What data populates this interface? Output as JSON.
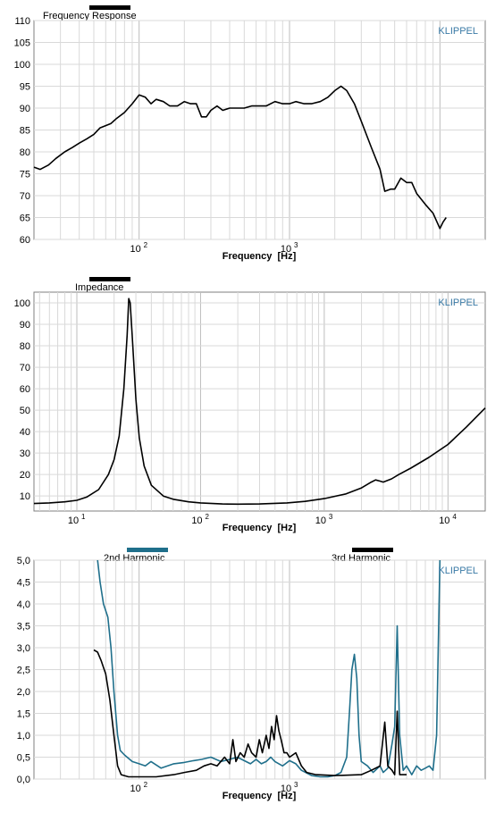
{
  "chart_data": [
    {
      "id": "fr",
      "type": "line",
      "title": "Frequency Response",
      "xlabel": "Frequency  [Hz]",
      "ylabel": "",
      "brand": "KLIPPEL",
      "x_scale": "log",
      "xlim": [
        20,
        20000
      ],
      "ylim": [
        60,
        110
      ],
      "y_ticks": [
        60,
        65,
        70,
        75,
        80,
        85,
        90,
        95,
        100,
        105,
        110
      ],
      "x_tick_labels": [
        {
          "value": 100,
          "base": "10",
          "exp": "2"
        },
        {
          "value": 1000,
          "base": "10",
          "exp": "3"
        }
      ],
      "grid": true,
      "series": [
        {
          "color": "#000000",
          "points": [
            [
              20,
              76.5
            ],
            [
              22,
              76
            ],
            [
              25,
              77
            ],
            [
              28,
              78.5
            ],
            [
              32,
              80
            ],
            [
              36,
              81
            ],
            [
              40,
              82
            ],
            [
              45,
              83
            ],
            [
              50,
              84
            ],
            [
              55,
              85.5
            ],
            [
              60,
              86
            ],
            [
              65,
              86.5
            ],
            [
              70,
              87.5
            ],
            [
              80,
              89
            ],
            [
              90,
              91
            ],
            [
              100,
              93
            ],
            [
              110,
              92.5
            ],
            [
              120,
              91
            ],
            [
              130,
              92
            ],
            [
              145,
              91.5
            ],
            [
              160,
              90.5
            ],
            [
              180,
              90.5
            ],
            [
              200,
              91.5
            ],
            [
              220,
              91
            ],
            [
              240,
              91
            ],
            [
              260,
              88
            ],
            [
              280,
              88
            ],
            [
              300,
              89.5
            ],
            [
              330,
              90.5
            ],
            [
              360,
              89.5
            ],
            [
              400,
              90
            ],
            [
              450,
              90
            ],
            [
              500,
              90
            ],
            [
              560,
              90.5
            ],
            [
              630,
              90.5
            ],
            [
              700,
              90.5
            ],
            [
              800,
              91.5
            ],
            [
              900,
              91
            ],
            [
              1000,
              91
            ],
            [
              1100,
              91.5
            ],
            [
              1250,
              91
            ],
            [
              1400,
              91
            ],
            [
              1600,
              91.5
            ],
            [
              1800,
              92.5
            ],
            [
              2000,
              94
            ],
            [
              2200,
              95
            ],
            [
              2400,
              94
            ],
            [
              2700,
              91
            ],
            [
              3000,
              87
            ],
            [
              3500,
              81
            ],
            [
              4000,
              76
            ],
            [
              4300,
              71
            ],
            [
              4700,
              71.5
            ],
            [
              5000,
              71.5
            ],
            [
              5500,
              74
            ],
            [
              6000,
              73
            ],
            [
              6500,
              73
            ],
            [
              7000,
              70.5
            ],
            [
              8000,
              68
            ],
            [
              9000,
              66
            ],
            [
              10000,
              62.5
            ],
            [
              10500,
              64
            ],
            [
              11000,
              65
            ]
          ]
        }
      ]
    },
    {
      "id": "imp",
      "type": "line",
      "title": "Impedance",
      "xlabel": "Frequency  [Hz]",
      "ylabel": "",
      "brand": "KLIPPEL",
      "x_scale": "log",
      "xlim": [
        4.5,
        20000
      ],
      "ylim": [
        3,
        105
      ],
      "y_ticks": [
        10,
        20,
        30,
        40,
        50,
        60,
        70,
        80,
        90,
        100
      ],
      "x_tick_labels": [
        {
          "value": 10,
          "base": "10",
          "exp": "1"
        },
        {
          "value": 100,
          "base": "10",
          "exp": "2"
        },
        {
          "value": 1000,
          "base": "10",
          "exp": "3"
        },
        {
          "value": 10000,
          "base": "10",
          "exp": "4"
        }
      ],
      "grid": true,
      "series": [
        {
          "color": "#000000",
          "points": [
            [
              4.5,
              6.5
            ],
            [
              6,
              6.8
            ],
            [
              8,
              7.3
            ],
            [
              10,
              8
            ],
            [
              12,
              9.5
            ],
            [
              15,
              13
            ],
            [
              18,
              20
            ],
            [
              20,
              27
            ],
            [
              22,
              38
            ],
            [
              24,
              60
            ],
            [
              25.5,
              85
            ],
            [
              26.3,
              102
            ],
            [
              27,
              100
            ],
            [
              28,
              85
            ],
            [
              30,
              55
            ],
            [
              32,
              37
            ],
            [
              35,
              24
            ],
            [
              40,
              15
            ],
            [
              50,
              10
            ],
            [
              60,
              8.5
            ],
            [
              80,
              7.3
            ],
            [
              100,
              6.8
            ],
            [
              150,
              6.3
            ],
            [
              200,
              6.2
            ],
            [
              300,
              6.3
            ],
            [
              500,
              6.8
            ],
            [
              700,
              7.5
            ],
            [
              1000,
              8.8
            ],
            [
              1500,
              11
            ],
            [
              2000,
              13.8
            ],
            [
              2400,
              16.5
            ],
            [
              2600,
              17.5
            ],
            [
              2800,
              17
            ],
            [
              3000,
              16.5
            ],
            [
              3500,
              18
            ],
            [
              4000,
              20
            ],
            [
              5000,
              23
            ],
            [
              7000,
              28
            ],
            [
              10000,
              34
            ],
            [
              14000,
              42
            ],
            [
              20000,
              51
            ]
          ]
        }
      ]
    },
    {
      "id": "harm",
      "type": "line",
      "title": "",
      "xlabel": "Frequency  [Hz]",
      "ylabel": "",
      "brand": "KLIPPEL",
      "x_scale": "log",
      "xlim": [
        20,
        20000
      ],
      "ylim": [
        0,
        5
      ],
      "y_ticks": [
        0,
        0.5,
        1.0,
        1.5,
        2.0,
        2.5,
        3.0,
        3.5,
        4.0,
        4.5,
        5.0
      ],
      "y_tick_labels": [
        "0,0",
        "0,5",
        "1,0",
        "1,5",
        "2,0",
        "2,5",
        "3,0",
        "3,5",
        "4,0",
        "4,5",
        "5,0"
      ],
      "x_tick_labels": [
        {
          "value": 100,
          "base": "10",
          "exp": "2"
        },
        {
          "value": 1000,
          "base": "10",
          "exp": "3"
        }
      ],
      "grid": true,
      "series": [
        {
          "name": "2nd Harmonic",
          "color": "#1f6f8b",
          "points": [
            [
              53,
              5.0
            ],
            [
              55,
              4.5
            ],
            [
              58,
              4.0
            ],
            [
              62,
              3.7
            ],
            [
              65,
              3.0
            ],
            [
              68,
              2.0
            ],
            [
              72,
              1.0
            ],
            [
              75,
              0.65
            ],
            [
              80,
              0.55
            ],
            [
              90,
              0.4
            ],
            [
              100,
              0.35
            ],
            [
              110,
              0.3
            ],
            [
              120,
              0.4
            ],
            [
              140,
              0.25
            ],
            [
              170,
              0.35
            ],
            [
              200,
              0.38
            ],
            [
              230,
              0.42
            ],
            [
              260,
              0.45
            ],
            [
              300,
              0.5
            ],
            [
              350,
              0.4
            ],
            [
              400,
              0.45
            ],
            [
              450,
              0.5
            ],
            [
              500,
              0.42
            ],
            [
              550,
              0.35
            ],
            [
              600,
              0.45
            ],
            [
              650,
              0.35
            ],
            [
              700,
              0.4
            ],
            [
              750,
              0.5
            ],
            [
              800,
              0.4
            ],
            [
              850,
              0.35
            ],
            [
              900,
              0.3
            ],
            [
              1000,
              0.42
            ],
            [
              1100,
              0.35
            ],
            [
              1200,
              0.2
            ],
            [
              1400,
              0.08
            ],
            [
              1600,
              0.05
            ],
            [
              1800,
              0.05
            ],
            [
              2000,
              0.08
            ],
            [
              2200,
              0.15
            ],
            [
              2400,
              0.5
            ],
            [
              2500,
              1.5
            ],
            [
              2600,
              2.5
            ],
            [
              2700,
              2.85
            ],
            [
              2800,
              2.3
            ],
            [
              2900,
              1.0
            ],
            [
              3000,
              0.4
            ],
            [
              3300,
              0.3
            ],
            [
              3600,
              0.15
            ],
            [
              4000,
              0.3
            ],
            [
              4200,
              0.15
            ],
            [
              4500,
              0.25
            ],
            [
              4800,
              0.8
            ],
            [
              5000,
              1.2
            ],
            [
              5200,
              3.5
            ],
            [
              5400,
              1.0
            ],
            [
              5700,
              0.2
            ],
            [
              6000,
              0.3
            ],
            [
              6500,
              0.1
            ],
            [
              7000,
              0.3
            ],
            [
              7500,
              0.2
            ],
            [
              8000,
              0.25
            ],
            [
              8500,
              0.3
            ],
            [
              9000,
              0.2
            ],
            [
              9500,
              1.0
            ],
            [
              10000,
              5.0
            ]
          ]
        },
        {
          "name": "3rd Harmonic",
          "color": "#000000",
          "points": [
            [
              50,
              2.95
            ],
            [
              53,
              2.9
            ],
            [
              56,
              2.7
            ],
            [
              60,
              2.4
            ],
            [
              64,
              1.8
            ],
            [
              68,
              1.0
            ],
            [
              72,
              0.3
            ],
            [
              76,
              0.1
            ],
            [
              85,
              0.05
            ],
            [
              100,
              0.05
            ],
            [
              130,
              0.05
            ],
            [
              170,
              0.1
            ],
            [
              200,
              0.15
            ],
            [
              240,
              0.2
            ],
            [
              270,
              0.3
            ],
            [
              300,
              0.35
            ],
            [
              330,
              0.3
            ],
            [
              370,
              0.5
            ],
            [
              400,
              0.35
            ],
            [
              420,
              0.9
            ],
            [
              440,
              0.4
            ],
            [
              470,
              0.6
            ],
            [
              500,
              0.5
            ],
            [
              530,
              0.8
            ],
            [
              560,
              0.6
            ],
            [
              600,
              0.5
            ],
            [
              630,
              0.9
            ],
            [
              660,
              0.6
            ],
            [
              700,
              1.0
            ],
            [
              730,
              0.7
            ],
            [
              760,
              1.2
            ],
            [
              790,
              0.9
            ],
            [
              820,
              1.45
            ],
            [
              850,
              1.1
            ],
            [
              880,
              0.9
            ],
            [
              920,
              0.6
            ],
            [
              960,
              0.6
            ],
            [
              1000,
              0.5
            ],
            [
              1050,
              0.55
            ],
            [
              1100,
              0.6
            ],
            [
              1150,
              0.45
            ],
            [
              1200,
              0.3
            ],
            [
              1300,
              0.15
            ],
            [
              1500,
              0.1
            ],
            [
              2000,
              0.08
            ],
            [
              3000,
              0.1
            ],
            [
              3500,
              0.2
            ],
            [
              4000,
              0.3
            ],
            [
              4300,
              1.3
            ],
            [
              4500,
              0.3
            ],
            [
              4800,
              0.2
            ],
            [
              5000,
              0.1
            ],
            [
              5200,
              1.55
            ],
            [
              5400,
              0.1
            ],
            [
              6000,
              0.1
            ]
          ]
        }
      ]
    }
  ]
}
